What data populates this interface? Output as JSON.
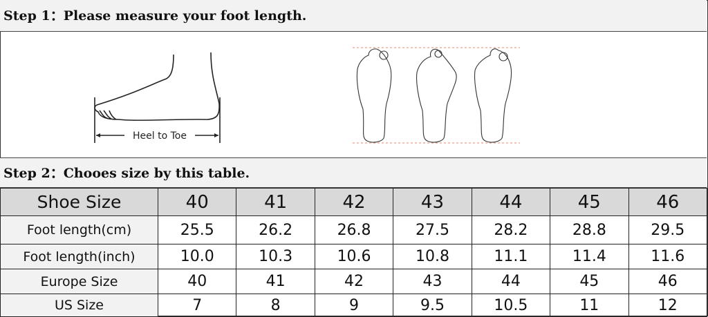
{
  "step1": {
    "title": "Step 1：Please measure your foot length.",
    "diagram_label": "Heel to Toe"
  },
  "step2": {
    "title": "Step 2：Chooes size by this table."
  },
  "table": {
    "header": [
      "Shoe Size",
      "40",
      "41",
      "42",
      "43",
      "44",
      "45",
      "46"
    ],
    "rows": [
      [
        "Foot length(cm)",
        "25.5",
        "26.2",
        "26.8",
        "27.5",
        "28.2",
        "28.8",
        "29.5"
      ],
      [
        "Foot length(inch)",
        "10.0",
        "10.3",
        "10.6",
        "10.8",
        "11.1",
        "11.4",
        "11.6"
      ],
      [
        "Europe Size",
        "40",
        "41",
        "42",
        "43",
        "44",
        "45",
        "46"
      ],
      [
        "US Size",
        "7",
        "8",
        "9",
        "9.5",
        "10.5",
        "11",
        "12"
      ]
    ]
  },
  "colors": {
    "header_bg": "#f2f2f2",
    "table_header_bg": "#d9d9d9",
    "guide_line": "#e8866a"
  }
}
